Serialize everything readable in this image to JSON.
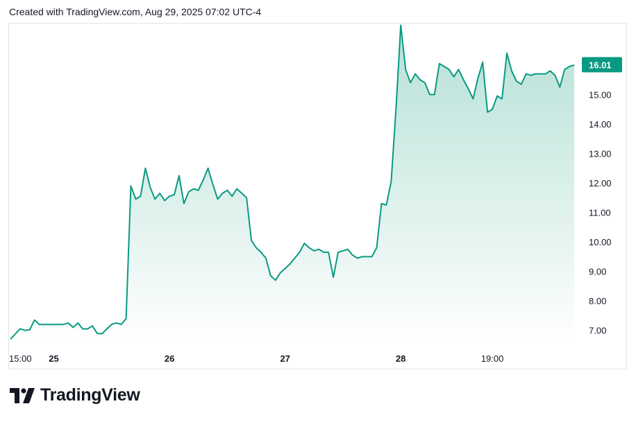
{
  "header": {
    "attribution": "Created with TradingView.com, Aug 29, 2025 07:02 UTC-4"
  },
  "brand": {
    "name": "TradingView",
    "logo_icon": "tradingview-logo-icon"
  },
  "colors": {
    "line": "#089981",
    "fill_top": "#b2dfd4",
    "fill_bottom": "#ffffff",
    "badge_bg": "#089981",
    "badge_text": "#ffffff",
    "frame": "#e0e3eb"
  },
  "chart_data": {
    "type": "area",
    "title": "",
    "xlabel": "",
    "ylabel": "",
    "ylim": [
      6.5,
      17.5
    ],
    "y_ticks": [
      "7.00",
      "8.00",
      "9.00",
      "10.00",
      "11.00",
      "12.00",
      "13.00",
      "14.00",
      "15.00"
    ],
    "x_ticks": [
      {
        "label": "15:00",
        "x": 0
      },
      {
        "label": "25",
        "x": 9
      },
      {
        "label": "26",
        "x": 33
      },
      {
        "label": "27",
        "x": 57
      },
      {
        "label": "28",
        "x": 81
      },
      {
        "label": "19:00",
        "x": 100
      }
    ],
    "xlim": [
      0,
      117.5
    ],
    "last_value_label": "16.01",
    "last_value": 16.01,
    "series": [
      {
        "values": [
          [
            0,
            6.7
          ],
          [
            2,
            7.05
          ],
          [
            3,
            7.0
          ],
          [
            4,
            7.02
          ],
          [
            5,
            7.35
          ],
          [
            6,
            7.2
          ],
          [
            8,
            7.2
          ],
          [
            11,
            7.2
          ],
          [
            12,
            7.25
          ],
          [
            13,
            7.1
          ],
          [
            14,
            7.25
          ],
          [
            15,
            7.05
          ],
          [
            16,
            7.05
          ],
          [
            17,
            7.15
          ],
          [
            18,
            6.9
          ],
          [
            19,
            6.88
          ],
          [
            20,
            7.05
          ],
          [
            21,
            7.2
          ],
          [
            22,
            7.25
          ],
          [
            23,
            7.2
          ],
          [
            24,
            7.4
          ],
          [
            25,
            11.9
          ],
          [
            26,
            11.45
          ],
          [
            27,
            11.55
          ],
          [
            28,
            12.5
          ],
          [
            29,
            11.85
          ],
          [
            30,
            11.45
          ],
          [
            31,
            11.65
          ],
          [
            32,
            11.4
          ],
          [
            33,
            11.55
          ],
          [
            34,
            11.6
          ],
          [
            35,
            12.25
          ],
          [
            36,
            11.3
          ],
          [
            37,
            11.7
          ],
          [
            38,
            11.8
          ],
          [
            39,
            11.75
          ],
          [
            40,
            12.1
          ],
          [
            41,
            12.5
          ],
          [
            42,
            11.95
          ],
          [
            43,
            11.45
          ],
          [
            44,
            11.65
          ],
          [
            45,
            11.75
          ],
          [
            46,
            11.55
          ],
          [
            47,
            11.8
          ],
          [
            48,
            11.65
          ],
          [
            49,
            11.5
          ],
          [
            50,
            10.05
          ],
          [
            51,
            9.8
          ],
          [
            52,
            9.65
          ],
          [
            53,
            9.45
          ],
          [
            54,
            8.85
          ],
          [
            55,
            8.7
          ],
          [
            56,
            8.95
          ],
          [
            57,
            9.1
          ],
          [
            58,
            9.25
          ],
          [
            59,
            9.45
          ],
          [
            60,
            9.65
          ],
          [
            61,
            9.95
          ],
          [
            62,
            9.8
          ],
          [
            63,
            9.7
          ],
          [
            64,
            9.75
          ],
          [
            65,
            9.65
          ],
          [
            66,
            9.65
          ],
          [
            67,
            8.8
          ],
          [
            68,
            9.65
          ],
          [
            69,
            9.7
          ],
          [
            70,
            9.75
          ],
          [
            71,
            9.55
          ],
          [
            72,
            9.45
          ],
          [
            73,
            9.5
          ],
          [
            74,
            9.5
          ],
          [
            75,
            9.5
          ],
          [
            76,
            9.8
          ],
          [
            77,
            11.3
          ],
          [
            78,
            11.25
          ],
          [
            79,
            12.05
          ],
          [
            80,
            14.5
          ],
          [
            81,
            17.35
          ],
          [
            82,
            15.85
          ],
          [
            83,
            15.4
          ],
          [
            84,
            15.7
          ],
          [
            85,
            15.5
          ],
          [
            86,
            15.4
          ],
          [
            87,
            15.0
          ],
          [
            88,
            15.0
          ],
          [
            89,
            16.05
          ],
          [
            90,
            15.95
          ],
          [
            91,
            15.85
          ],
          [
            92,
            15.6
          ],
          [
            93,
            15.85
          ],
          [
            94,
            15.5
          ],
          [
            95,
            15.2
          ],
          [
            96,
            14.85
          ],
          [
            97,
            15.55
          ],
          [
            98,
            16.1
          ],
          [
            99,
            14.4
          ],
          [
            100,
            14.5
          ],
          [
            101,
            14.95
          ],
          [
            102,
            14.85
          ],
          [
            103,
            16.4
          ],
          [
            104,
            15.8
          ],
          [
            105,
            15.45
          ],
          [
            106,
            15.35
          ],
          [
            107,
            15.7
          ],
          [
            108,
            15.65
          ],
          [
            109,
            15.7
          ],
          [
            110,
            15.7
          ],
          [
            111,
            15.7
          ],
          [
            112,
            15.8
          ],
          [
            113,
            15.65
          ],
          [
            114,
            15.25
          ],
          [
            115,
            15.85
          ],
          [
            116,
            15.95
          ],
          [
            117,
            16.0
          ]
        ]
      }
    ]
  }
}
